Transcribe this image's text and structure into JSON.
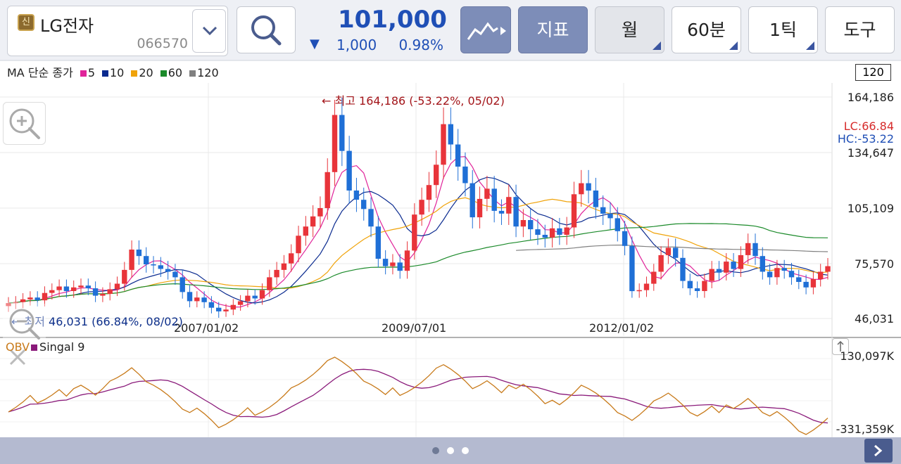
{
  "header": {
    "badge": "신",
    "stock_name": "LG전자",
    "stock_code": "066570",
    "price": "101,000",
    "change_arrow": "▼",
    "change_amount": "1,000",
    "change_pct": "0.98%",
    "buttons": {
      "indicator": "지표",
      "period": "월",
      "interval": "60분",
      "tick": "1틱",
      "tools": "도구"
    },
    "colors": {
      "price_down": "#1f4fb6",
      "active_button": "#7d8db8"
    }
  },
  "legend": {
    "prefix": "MA 단순 종가",
    "items": [
      {
        "label": "5",
        "color": "#e0249a"
      },
      {
        "label": "10",
        "color": "#0a2a8f"
      },
      {
        "label": "20",
        "color": "#f0a30a"
      },
      {
        "label": "60",
        "color": "#1b8a2a"
      },
      {
        "label": "120",
        "color": "#808080"
      }
    ]
  },
  "period_box": "120",
  "y_axis": [
    "164,186",
    "134,647",
    "105,109",
    "75,570",
    "46,031"
  ],
  "hc_lc": {
    "lc": "LC:66.84",
    "hc": "HC:-53.22"
  },
  "x_axis": [
    "2007/01/02",
    "2009/07/01",
    "2012/01/02"
  ],
  "annotations": {
    "high": "← 최고 164,186 (-53.22%, 05/02)",
    "low": "← 최저 46,031 (66.84%, 08/02)"
  },
  "obv_legend": {
    "obv": "OBV",
    "signal": "Singal 9"
  },
  "obv_axis": [
    "130,097K",
    "-331,359K"
  ],
  "chart_data": {
    "type": "candlestick",
    "title": "",
    "period": "monthly",
    "ylim": [
      46031,
      164186
    ],
    "high": 164186,
    "low": 46031,
    "close": [
      54000,
      54500,
      56000,
      57000,
      55500,
      59500,
      61000,
      63000,
      60500,
      62500,
      63500,
      62000,
      58000,
      59000,
      61500,
      64500,
      72000,
      83000,
      79500,
      75000,
      74500,
      72500,
      71000,
      68000,
      60000,
      55000,
      57000,
      54500,
      51500,
      49500,
      50500,
      53000,
      55000,
      58000,
      56500,
      61000,
      68000,
      72000,
      75500,
      81000,
      90500,
      95500,
      101000,
      105500,
      125000,
      156000,
      136500,
      115000,
      110000,
      105000,
      95500,
      78000,
      74000,
      76000,
      71500,
      82500,
      102000,
      110000,
      118000,
      129000,
      151000,
      140000,
      128000,
      119000,
      100500,
      110500,
      116000,
      104000,
      102500,
      111500,
      95500,
      99000,
      94000,
      91000,
      89500,
      94500,
      91000,
      95000,
      113000,
      119000,
      115000,
      106000,
      102500,
      100000,
      93000,
      85000,
      60500,
      61000,
      64500,
      71000,
      80000,
      84000,
      78500,
      66000,
      62000,
      60500,
      66000,
      72500,
      70500,
      76500,
      72500,
      80000,
      86500,
      79500,
      71000,
      68000,
      73000,
      71500,
      68000,
      65500,
      62500,
      67000,
      71000,
      74000
    ],
    "series_ma": [
      "5",
      "10",
      "20",
      "60",
      "120"
    ],
    "obv_range": [
      "-331,359K",
      "130,097K"
    ]
  }
}
